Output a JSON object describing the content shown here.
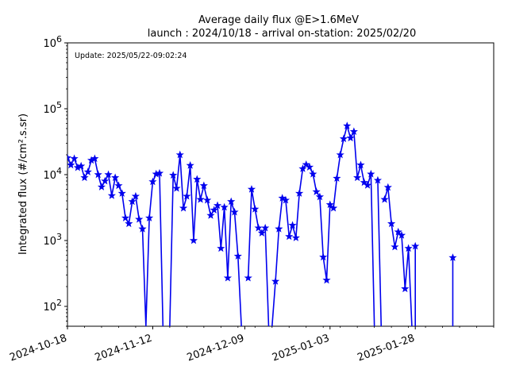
{
  "chart_data": {
    "type": "line",
    "title": "Average daily flux @E>1.6MeV",
    "subtitle": "launch : 2024/10/18 - arrival on-station: 2025/02/20",
    "annotation": "Update: 2025/05/22-09:02:24",
    "ylabel": "Integrated flux (#/cm².s.sr)",
    "xlabel": "",
    "y_scale": "log",
    "ylim": [
      50,
      1000000
    ],
    "xlim": [
      "2024-10-18",
      "2025-02-20"
    ],
    "x_ticks": [
      "2024-10-18",
      "2024-11-12",
      "2024-12-09",
      "2025-01-03",
      "2025-01-28"
    ],
    "y_ticks": [
      {
        "value": 100,
        "base": "10",
        "exp": "2"
      },
      {
        "value": 1000,
        "base": "10",
        "exp": "3"
      },
      {
        "value": 10000,
        "base": "10",
        "exp": "4"
      },
      {
        "value": 100000,
        "base": "10",
        "exp": "5"
      },
      {
        "value": 1000000,
        "base": "10",
        "exp": "6"
      }
    ],
    "grid": false,
    "line_color": "#0000ee",
    "marker": "star",
    "series": [
      {
        "name": "",
        "points": [
          [
            "2024-10-18",
            18000
          ],
          [
            "2024-10-19",
            14000
          ],
          [
            "2024-10-20",
            17500
          ],
          [
            "2024-10-21",
            12800
          ],
          [
            "2024-10-22",
            13500
          ],
          [
            "2024-10-23",
            9000
          ],
          [
            "2024-10-24",
            11000
          ],
          [
            "2024-10-25",
            16500
          ],
          [
            "2024-10-26",
            17500
          ],
          [
            "2024-10-27",
            10000
          ],
          [
            "2024-10-28",
            6500
          ],
          [
            "2024-10-29",
            8000
          ],
          [
            "2024-10-30",
            10000
          ],
          [
            "2024-10-31",
            4800
          ],
          [
            "2024-11-01",
            9000
          ],
          [
            "2024-11-02",
            6800
          ],
          [
            "2024-11-03",
            5200
          ],
          [
            "2024-11-04",
            2200
          ],
          [
            "2024-11-05",
            1800
          ],
          [
            "2024-11-06",
            3900
          ],
          [
            "2024-11-07",
            4700
          ],
          [
            "2024-11-08",
            2100
          ],
          [
            "2024-11-09",
            1500
          ],
          [
            "2024-11-10",
            50
          ],
          [
            "2024-11-11",
            2200
          ],
          [
            "2024-11-12",
            7800
          ],
          [
            "2024-11-13",
            10200
          ],
          [
            "2024-11-14",
            10500
          ],
          [
            "2024-11-15",
            50
          ],
          null,
          [
            "2024-11-17",
            50
          ],
          [
            "2024-11-18",
            9800
          ],
          [
            "2024-11-19",
            6200
          ],
          [
            "2024-11-20",
            20000
          ],
          [
            "2024-11-21",
            3100
          ],
          [
            "2024-11-22",
            4700
          ],
          [
            "2024-11-23",
            13800
          ],
          [
            "2024-11-24",
            1000
          ],
          [
            "2024-11-25",
            8500
          ],
          [
            "2024-11-26",
            4200
          ],
          [
            "2024-11-27",
            6800
          ],
          [
            "2024-11-28",
            4100
          ],
          [
            "2024-11-29",
            2400
          ],
          [
            "2024-11-30",
            2900
          ],
          [
            "2024-12-01",
            3400
          ],
          [
            "2024-12-02",
            760
          ],
          [
            "2024-12-03",
            3200
          ],
          [
            "2024-12-04",
            270
          ],
          [
            "2024-12-05",
            3900
          ],
          [
            "2024-12-06",
            2700
          ],
          [
            "2024-12-07",
            580
          ],
          [
            "2024-12-08",
            50
          ],
          null,
          [
            "2024-12-10",
            270
          ],
          [
            "2024-12-11",
            6000
          ],
          [
            "2024-12-12",
            3000
          ],
          [
            "2024-12-13",
            1550
          ],
          [
            "2024-12-14",
            1300
          ],
          [
            "2024-12-15",
            1550
          ],
          [
            "2024-12-16",
            50
          ],
          null,
          [
            "2024-12-17",
            50
          ],
          [
            "2024-12-18",
            240
          ],
          [
            "2024-12-19",
            1500
          ],
          [
            "2024-12-20",
            4400
          ],
          [
            "2024-12-21",
            4100
          ],
          [
            "2024-12-22",
            1150
          ],
          [
            "2024-12-23",
            1700
          ],
          [
            "2024-12-24",
            1100
          ],
          [
            "2024-12-25",
            5200
          ],
          [
            "2024-12-26",
            12300
          ],
          [
            "2024-12-27",
            14200
          ],
          [
            "2024-12-28",
            13000
          ],
          [
            "2024-12-29",
            10200
          ],
          [
            "2024-12-30",
            5500
          ],
          [
            "2024-12-31",
            4600
          ],
          [
            "2025-01-01",
            560
          ],
          [
            "2025-01-02",
            250
          ],
          [
            "2025-01-03",
            3500
          ],
          [
            "2025-01-04",
            3100
          ],
          [
            "2025-01-05",
            8800
          ],
          [
            "2025-01-06",
            20000
          ],
          [
            "2025-01-07",
            35000
          ],
          [
            "2025-01-08",
            55000
          ],
          [
            "2025-01-09",
            36000
          ],
          [
            "2025-01-10",
            45000
          ],
          [
            "2025-01-11",
            9000
          ],
          [
            "2025-01-12",
            14000
          ],
          [
            "2025-01-13",
            7600
          ],
          [
            "2025-01-14",
            6900
          ],
          [
            "2025-01-15",
            10200
          ],
          [
            "2025-01-16",
            50
          ],
          null,
          [
            "2025-01-17",
            8200
          ],
          [
            "2025-01-18",
            50
          ],
          null,
          [
            "2025-01-19",
            4200
          ],
          [
            "2025-01-20",
            6400
          ],
          [
            "2025-01-21",
            1800
          ],
          [
            "2025-01-22",
            800
          ],
          [
            "2025-01-23",
            1350
          ],
          [
            "2025-01-24",
            1200
          ],
          [
            "2025-01-25",
            185
          ],
          [
            "2025-01-26",
            760
          ],
          [
            "2025-01-27",
            50
          ],
          null,
          [
            "2025-01-28",
            50
          ],
          [
            "2025-01-28",
            820
          ],
          null,
          [
            "2025-02-08",
            50
          ],
          [
            "2025-02-08",
            550
          ]
        ]
      }
    ]
  }
}
